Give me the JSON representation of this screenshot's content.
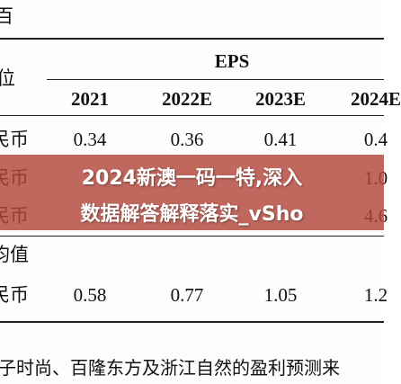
{
  "table": {
    "corner": "百",
    "header_left": "位",
    "group": "EPS",
    "columns": [
      "2021",
      "2022E",
      "2023E",
      "2024E"
    ],
    "rows": [
      {
        "label": "民币",
        "cells": [
          "0.34",
          "0.36",
          "0.41",
          "0.4"
        ]
      },
      {
        "label": "民币",
        "cells": [
          null,
          null,
          null,
          "1.0"
        ]
      },
      {
        "label": "民币",
        "cells": [
          null,
          null,
          null,
          "4.6"
        ]
      },
      {
        "label": "均值",
        "cells": [
          null,
          null,
          null,
          null
        ]
      },
      {
        "label": "民币",
        "cells": [
          "0.58",
          "0.77",
          "1.05",
          "1.2"
        ]
      }
    ]
  },
  "footnote": "子时尚、百隆东方及浙江自然的盈利预测来",
  "banner": {
    "lines": [
      "2024新澳一码一特,深入",
      "数据解答解释落实_vSho"
    ]
  }
}
